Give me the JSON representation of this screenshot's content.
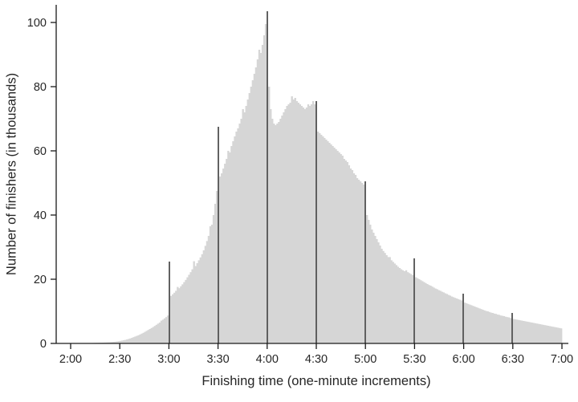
{
  "chart_data": {
    "type": "bar",
    "title": "",
    "xlabel": "Finishing time (one-minute increments)",
    "ylabel": "Number of finishers (in thousands)",
    "x_start_minute": 120,
    "x_end_minute": 420,
    "x_ticks": {
      "minutes": [
        120,
        150,
        180,
        210,
        240,
        270,
        300,
        330,
        360,
        390,
        420
      ],
      "labels": [
        "2:00",
        "2:30",
        "3:00",
        "3:30",
        "4:00",
        "4:30",
        "5:00",
        "5:30",
        "6:00",
        "6:30",
        "7:00"
      ]
    },
    "y_ticks": {
      "values": [
        0,
        20,
        40,
        60,
        80,
        100
      ],
      "labels": [
        "0",
        "20",
        "40",
        "60",
        "80",
        "100"
      ]
    },
    "ylim": [
      0,
      105
    ],
    "grid": false,
    "legend": false,
    "bar_color": "#d6d6d6",
    "highlight_color": "#4a4a4a",
    "axis_color": "#1a1a1a",
    "text_color": "#262626",
    "highlight_minutes": [
      180,
      210,
      240,
      270,
      300,
      330,
      360,
      390
    ],
    "values": [
      0.05,
      0.05,
      0.06,
      0.06,
      0.07,
      0.07,
      0.08,
      0.08,
      0.09,
      0.1,
      0.1,
      0.11,
      0.12,
      0.13,
      0.15,
      0.17,
      0.19,
      0.21,
      0.23,
      0.25,
      0.28,
      0.3,
      0.33,
      0.36,
      0.4,
      0.45,
      0.5,
      0.55,
      0.62,
      0.7,
      0.8,
      0.9,
      1.0,
      1.1,
      1.25,
      1.4,
      1.55,
      1.75,
      1.95,
      2.15,
      2.35,
      2.55,
      2.8,
      3.05,
      3.3,
      3.6,
      3.9,
      4.2,
      4.5,
      4.8,
      5.1,
      5.45,
      5.8,
      6.15,
      6.5,
      7.1,
      7.4,
      7.8,
      8.2,
      8.7,
      25.5,
      14.8,
      15.3,
      15.8,
      16.4,
      17.6,
      17.2,
      17.8,
      18.4,
      19.1,
      19.8,
      20.6,
      21.4,
      22.2,
      23.1,
      25.6,
      24.1,
      25.0,
      25.9,
      26.8,
      27.8,
      29.0,
      30.4,
      31.9,
      33.5,
      36.5,
      37.0,
      40.0,
      43.5,
      47.5,
      67.5,
      52.0,
      53.0,
      54.5,
      56.0,
      57.5,
      60.0,
      59.5,
      61.5,
      63.0,
      64.5,
      66.0,
      67.0,
      68.5,
      70.0,
      73.0,
      72.0,
      74.0,
      76.0,
      78.0,
      80.0,
      82.0,
      84.0,
      86.0,
      88.5,
      91.5,
      90.5,
      93.0,
      96.0,
      99.5,
      103.5,
      80.0,
      73.0,
      70.0,
      68.5,
      68.0,
      68.5,
      69.0,
      70.0,
      71.0,
      72.0,
      73.0,
      74.0,
      74.5,
      75.0,
      77.0,
      76.0,
      76.5,
      75.5,
      75.0,
      74.5,
      74.0,
      73.5,
      73.0,
      73.5,
      74.5,
      74.0,
      74.5,
      75.5,
      74.5,
      75.5,
      66.0,
      65.5,
      65.0,
      64.5,
      64.0,
      63.5,
      63.0,
      62.5,
      62.0,
      61.5,
      61.0,
      60.5,
      60.0,
      59.5,
      59.0,
      58.5,
      57.5,
      57.0,
      56.5,
      55.5,
      54.5,
      54.0,
      53.0,
      52.5,
      51.5,
      51.0,
      50.5,
      50.0,
      49.5,
      50.5,
      40.0,
      38.5,
      37.0,
      35.5,
      34.5,
      33.5,
      32.5,
      31.5,
      30.5,
      29.5,
      28.8,
      28.2,
      27.5,
      26.9,
      26.9,
      25.9,
      25.4,
      24.9,
      24.4,
      23.9,
      23.5,
      23.1,
      22.8,
      22.5,
      22.8,
      22.2,
      21.9,
      21.6,
      21.3,
      26.5,
      20.6,
      20.3,
      20.0,
      19.7,
      19.4,
      19.1,
      18.8,
      18.5,
      18.2,
      18.0,
      17.7,
      17.4,
      17.1,
      16.9,
      16.6,
      16.4,
      16.1,
      15.9,
      15.6,
      15.4,
      15.1,
      14.9,
      14.6,
      14.4,
      14.2,
      14.0,
      13.8,
      13.6,
      13.4,
      15.5,
      12.7,
      12.5,
      12.3,
      12.1,
      11.9,
      11.7,
      11.5,
      11.3,
      11.1,
      10.9,
      10.7,
      10.5,
      10.3,
      10.1,
      10.0,
      9.8,
      9.6,
      9.5,
      9.3,
      9.2,
      9.0,
      8.9,
      8.7,
      8.6,
      8.5,
      8.3,
      8.2,
      8.1,
      7.9,
      9.5,
      7.6,
      7.5,
      7.4,
      7.3,
      7.2,
      7.1,
      7.0,
      6.9,
      6.8,
      6.7,
      6.6,
      6.5,
      6.4,
      6.3,
      6.2,
      6.1,
      6.0,
      5.9,
      5.8,
      5.7,
      5.6,
      5.5,
      5.4,
      5.3,
      5.2,
      5.1,
      5.0,
      4.9,
      4.8,
      4.7
    ]
  }
}
